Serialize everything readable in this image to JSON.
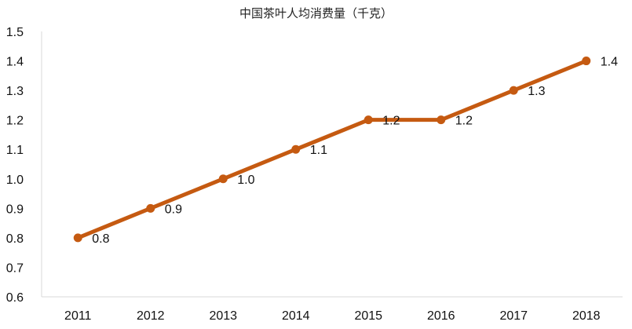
{
  "chart_data": {
    "type": "line",
    "title": "中国茶叶人均消费量（千克）",
    "xlabel": "",
    "ylabel": "",
    "categories": [
      "2011",
      "2012",
      "2013",
      "2014",
      "2015",
      "2016",
      "2017",
      "2018"
    ],
    "series": [
      {
        "values": [
          0.8,
          0.9,
          1.0,
          1.1,
          1.2,
          1.2,
          1.3,
          1.4
        ],
        "data_labels": [
          "0.8",
          "0.9",
          "1.0",
          "1.1",
          "1.2",
          "1.2",
          "1.3",
          "1.4"
        ],
        "color": "#c55a11"
      }
    ],
    "ylim": [
      0.6,
      1.5
    ],
    "yticks": [
      "0.6",
      "0.7",
      "0.8",
      "0.9",
      "1.0",
      "1.1",
      "1.2",
      "1.3",
      "1.4",
      "1.5"
    ],
    "grid": false,
    "legend": "none"
  }
}
